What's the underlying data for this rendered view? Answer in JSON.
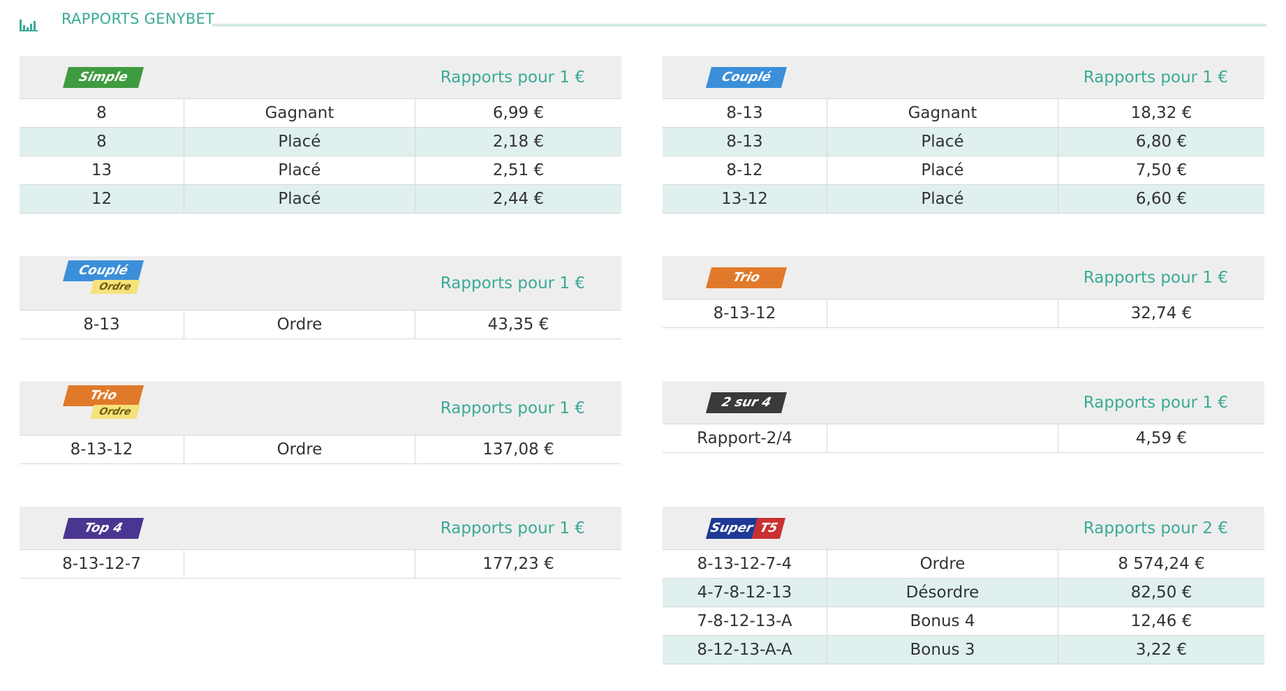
{
  "header": {
    "title": "RAPPORTS GENYBET"
  },
  "tables": [
    {
      "badge": [
        {
          "text": "Simple",
          "color": "#3f9b3f"
        }
      ],
      "price_header": "Rapports pour 1 €",
      "rows": [
        [
          "8",
          "Gagnant",
          "6,99 €"
        ],
        [
          "8",
          "Placé",
          "2,18 €"
        ],
        [
          "13",
          "Placé",
          "2,51 €"
        ],
        [
          "12",
          "Placé",
          "2,44 €"
        ]
      ]
    },
    {
      "badge": [
        {
          "text": "Couplé",
          "color": "#3b8fd9"
        }
      ],
      "price_header": "Rapports pour 1 €",
      "rows": [
        [
          "8-13",
          "Gagnant",
          "18,32 €"
        ],
        [
          "8-13",
          "Placé",
          "6,80 €"
        ],
        [
          "8-12",
          "Placé",
          "7,50 €"
        ],
        [
          "13-12",
          "Placé",
          "6,60 €"
        ]
      ]
    },
    {
      "badge": [
        {
          "text": "Couplé",
          "color": "#3b8fd9"
        },
        {
          "text": "Ordre",
          "color": "#f5e27a"
        }
      ],
      "price_header": "Rapports pour 1 €",
      "rows": [
        [
          "8-13",
          "Ordre",
          "43,35 €"
        ]
      ]
    },
    {
      "badge": [
        {
          "text": "Trio",
          "color": "#e07a2a"
        }
      ],
      "price_header": "Rapports pour 1 €",
      "rows": [
        [
          "8-13-12",
          null,
          "32,74 €"
        ]
      ]
    },
    {
      "badge": [
        {
          "text": "Trio",
          "color": "#e07a2a"
        },
        {
          "text": "Ordre",
          "color": "#f5e27a"
        }
      ],
      "price_header": "Rapports pour 1 €",
      "rows": [
        [
          "8-13-12",
          "Ordre",
          "137,08 €"
        ]
      ]
    },
    {
      "badge": [
        {
          "text": "2 sur 4",
          "color": "#3a3a3a"
        }
      ],
      "price_header": "Rapports pour 1 €",
      "rows": [
        [
          "Rapport-2/4",
          null,
          "4,59 €"
        ]
      ]
    },
    {
      "badge": [
        {
          "text": "Top 4",
          "color": "#4a3590"
        }
      ],
      "price_header": "Rapports pour 1 €",
      "rows": [
        [
          "8-13-12-7",
          null,
          "177,23 €"
        ]
      ]
    },
    {
      "badge": [
        {
          "text": "Super",
          "color": "#1f3a96"
        },
        {
          "text": "T5",
          "color": "#c93030"
        }
      ],
      "price_header": "Rapports pour 2 €",
      "rows": [
        [
          "8-13-12-7-4",
          "Ordre",
          "8 574,24 €"
        ],
        [
          "4-7-8-12-13",
          "Désordre",
          "82,50 €"
        ],
        [
          "7-8-12-13-A",
          "Bonus 4",
          "12,46 €"
        ],
        [
          "8-12-13-A-A",
          "Bonus 3",
          "3,22 €"
        ]
      ]
    }
  ]
}
